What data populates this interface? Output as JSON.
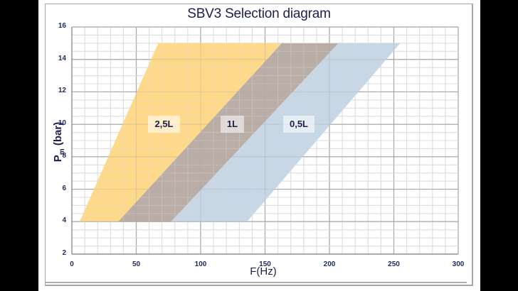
{
  "chart": {
    "title": "SBV3 Selection diagram",
    "xlabel": "F(Hz)",
    "ylabel_main": "P",
    "ylabel_sub": "m",
    "ylabel_unit": " (bar)",
    "xticks": [
      "0",
      "50",
      "100",
      "150",
      "200",
      "250",
      "300"
    ],
    "yticks": [
      "16",
      "14",
      "12",
      "10",
      "8",
      "6",
      "4",
      "2"
    ]
  },
  "bands": [
    {
      "label": "2,5L",
      "color": "#ffd98a"
    },
    {
      "label": "1L",
      "color": "#b9ada6"
    },
    {
      "label": "0,5L",
      "color": "#c7d7e6"
    }
  ],
  "chart_data": {
    "type": "area",
    "title": "SBV3 Selection diagram",
    "xlabel": "F(Hz)",
    "ylabel": "Pm (bar)",
    "xlim": [
      0,
      300
    ],
    "ylim": [
      2,
      16
    ],
    "xticks": [
      0,
      50,
      100,
      150,
      200,
      250,
      300
    ],
    "yticks": [
      2,
      4,
      6,
      8,
      10,
      12,
      14,
      16
    ],
    "grid": true,
    "minor_grid": {
      "x_step": 10,
      "y_step": 0.5
    },
    "series": [
      {
        "name": "2,5L",
        "color": "#ffd98a",
        "polygon": [
          [
            6,
            4
          ],
          [
            36,
            4
          ],
          [
            163,
            15
          ],
          [
            67,
            15
          ]
        ]
      },
      {
        "name": "1L",
        "color": "#b9ada6",
        "polygon": [
          [
            36,
            4
          ],
          [
            77,
            4
          ],
          [
            207,
            15
          ],
          [
            163,
            15
          ]
        ]
      },
      {
        "name": "0,5L",
        "color": "#c7d7e6",
        "polygon": [
          [
            77,
            4
          ],
          [
            136,
            4
          ],
          [
            255,
            15
          ],
          [
            207,
            15
          ]
        ]
      }
    ]
  }
}
